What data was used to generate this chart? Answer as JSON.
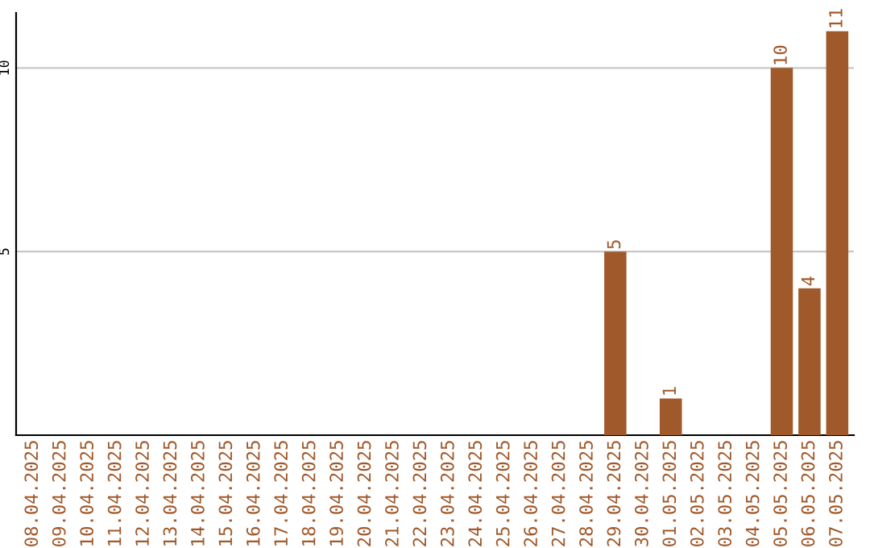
{
  "chart_data": {
    "type": "bar",
    "categories": [
      "08.04.2025",
      "09.04.2025",
      "10.04.2025",
      "11.04.2025",
      "12.04.2025",
      "13.04.2025",
      "14.04.2025",
      "15.04.2025",
      "16.04.2025",
      "17.04.2025",
      "18.04.2025",
      "19.04.2025",
      "20.04.2025",
      "21.04.2025",
      "22.04.2025",
      "23.04.2025",
      "24.04.2025",
      "25.04.2025",
      "26.04.2025",
      "27.04.2025",
      "28.04.2025",
      "29.04.2025",
      "30.04.2025",
      "01.05.2025",
      "02.05.2025",
      "03.05.2025",
      "04.05.2025",
      "05.05.2025",
      "06.05.2025",
      "07.05.2025"
    ],
    "values": [
      0,
      0,
      0,
      0,
      0,
      0,
      0,
      0,
      0,
      0,
      0,
      0,
      0,
      0,
      0,
      0,
      0,
      0,
      0,
      0,
      0,
      5,
      0,
      1,
      0,
      0,
      0,
      10,
      4,
      11
    ],
    "value_labels": [
      null,
      null,
      null,
      null,
      null,
      null,
      null,
      null,
      null,
      null,
      null,
      null,
      null,
      null,
      null,
      null,
      null,
      null,
      null,
      null,
      null,
      "5",
      null,
      "1",
      null,
      null,
      null,
      "10",
      "4",
      "11"
    ],
    "color": "#a0592a",
    "ylim": [
      0,
      11.5
    ],
    "yticks": [
      5,
      10
    ],
    "grid": "y"
  }
}
